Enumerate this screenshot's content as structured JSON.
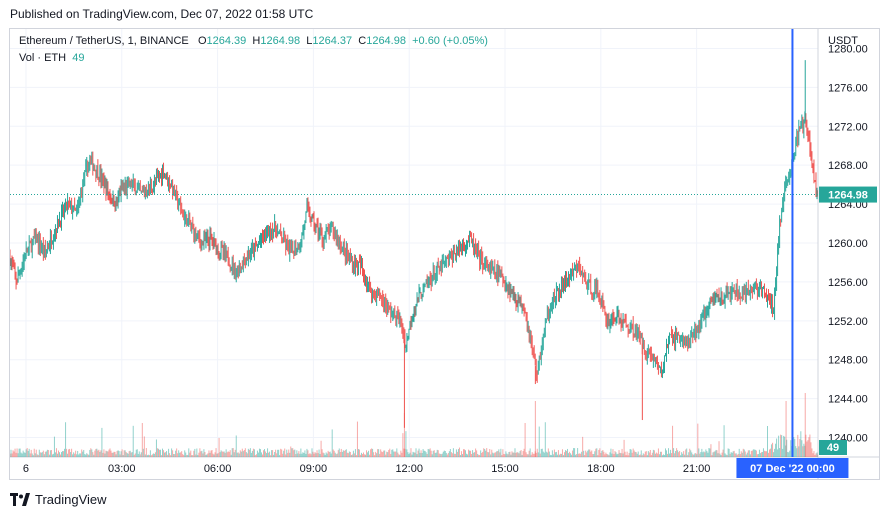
{
  "header": {
    "published": "Published on TradingView.com, Dec 07, 2022 01:58 UTC"
  },
  "legend": {
    "symbol": "Ethereum / TetherUS, 1, BINANCE",
    "o_label": "O",
    "o_value": "1264.39",
    "h_label": "H",
    "h_value": "1264.98",
    "l_label": "L",
    "l_value": "1264.37",
    "c_label": "C",
    "c_value": "1264.98",
    "change": "+0.60 (+0.05%)",
    "vol_label": "Vol · ETH",
    "vol_value": "49"
  },
  "footer": {
    "brand": "TradingView",
    "logo_icon": "tradingview-logo-icon"
  },
  "colors": {
    "up": "#26a69a",
    "down": "#ef5350",
    "cursor": "#2962ff",
    "grid": "#f0f3fa",
    "axis_text": "#131722"
  },
  "chart_data": {
    "type": "candlestick",
    "symbol": "Ethereum / TetherUS",
    "interval": "1",
    "exchange": "BINANCE",
    "currency_label": "USDT",
    "ylim": [
      1238,
      1282
    ],
    "y_ticks": [
      "1280.00",
      "1276.00",
      "1272.00",
      "1268.00",
      "1264.00",
      "1260.00",
      "1256.00",
      "1252.00",
      "1248.00",
      "1244.00",
      "1240.00"
    ],
    "x_ticks": [
      "6",
      "03:00",
      "06:00",
      "09:00",
      "12:00",
      "15:00",
      "18:00",
      "21:00"
    ],
    "time_range_hours": [
      -0.5,
      24.8
    ],
    "last_price": "1264.98",
    "last_volume": "49",
    "crosshair_time": "07 Dec '22  00:00",
    "crosshair_hour": 24.0,
    "grid": true,
    "price_path": [
      [
        -0.5,
        1258.5
      ],
      [
        -0.3,
        1256.0
      ],
      [
        0.0,
        1259.0
      ],
      [
        0.3,
        1260.5
      ],
      [
        0.6,
        1259.0
      ],
      [
        1.0,
        1262.0
      ],
      [
        1.3,
        1264.0
      ],
      [
        1.6,
        1263.0
      ],
      [
        1.8,
        1266.5
      ],
      [
        2.0,
        1268.5
      ],
      [
        2.3,
        1267.0
      ],
      [
        2.6,
        1265.0
      ],
      [
        2.8,
        1264.0
      ],
      [
        3.0,
        1265.5
      ],
      [
        3.3,
        1266.0
      ],
      [
        3.6,
        1265.0
      ],
      [
        4.0,
        1266.0
      ],
      [
        4.3,
        1267.5
      ],
      [
        4.6,
        1265.5
      ],
      [
        4.9,
        1263.0
      ],
      [
        5.2,
        1261.5
      ],
      [
        5.5,
        1260.0
      ],
      [
        5.8,
        1260.5
      ],
      [
        6.0,
        1259.5
      ],
      [
        6.3,
        1258.5
      ],
      [
        6.6,
        1257.0
      ],
      [
        6.9,
        1258.5
      ],
      [
        7.2,
        1259.5
      ],
      [
        7.5,
        1261.0
      ],
      [
        7.8,
        1261.5
      ],
      [
        8.0,
        1260.5
      ],
      [
        8.3,
        1259.0
      ],
      [
        8.6,
        1260.0
      ],
      [
        8.8,
        1263.5
      ],
      [
        9.0,
        1262.0
      ],
      [
        9.3,
        1260.5
      ],
      [
        9.6,
        1261.5
      ],
      [
        9.9,
        1259.5
      ],
      [
        10.2,
        1258.0
      ],
      [
        10.5,
        1257.5
      ],
      [
        10.8,
        1255.0
      ],
      [
        11.1,
        1254.5
      ],
      [
        11.4,
        1253.0
      ],
      [
        11.7,
        1252.0
      ],
      [
        11.9,
        1249.5
      ],
      [
        12.1,
        1253.0
      ],
      [
        12.4,
        1255.0
      ],
      [
        12.7,
        1256.5
      ],
      [
        13.0,
        1257.5
      ],
      [
        13.3,
        1258.5
      ],
      [
        13.6,
        1259.5
      ],
      [
        13.9,
        1260.5
      ],
      [
        14.1,
        1259.0
      ],
      [
        14.4,
        1257.5
      ],
      [
        14.7,
        1257.0
      ],
      [
        15.0,
        1256.0
      ],
      [
        15.3,
        1254.5
      ],
      [
        15.6,
        1253.5
      ],
      [
        15.8,
        1250.0
      ],
      [
        16.0,
        1246.5
      ],
      [
        16.2,
        1250.5
      ],
      [
        16.4,
        1253.5
      ],
      [
        16.7,
        1255.0
      ],
      [
        17.0,
        1256.5
      ],
      [
        17.3,
        1257.5
      ],
      [
        17.6,
        1255.5
      ],
      [
        17.9,
        1255.0
      ],
      [
        18.2,
        1252.0
      ],
      [
        18.5,
        1252.5
      ],
      [
        18.8,
        1251.5
      ],
      [
        19.1,
        1251.0
      ],
      [
        19.4,
        1249.0
      ],
      [
        19.7,
        1248.0
      ],
      [
        19.9,
        1246.5
      ],
      [
        20.1,
        1250.0
      ],
      [
        20.4,
        1250.5
      ],
      [
        20.7,
        1249.5
      ],
      [
        21.0,
        1251.0
      ],
      [
        21.3,
        1253.0
      ],
      [
        21.6,
        1254.5
      ],
      [
        21.9,
        1254.5
      ],
      [
        22.2,
        1255.0
      ],
      [
        22.5,
        1254.5
      ],
      [
        22.8,
        1255.5
      ],
      [
        23.1,
        1255.0
      ],
      [
        23.4,
        1253.0
      ],
      [
        23.6,
        1262.0
      ],
      [
        23.8,
        1266.0
      ],
      [
        24.0,
        1268.5
      ],
      [
        24.2,
        1271.5
      ],
      [
        24.4,
        1272.5
      ],
      [
        24.6,
        1268.5
      ],
      [
        24.7,
        1266.0
      ],
      [
        24.8,
        1265.0
      ]
    ]
  }
}
